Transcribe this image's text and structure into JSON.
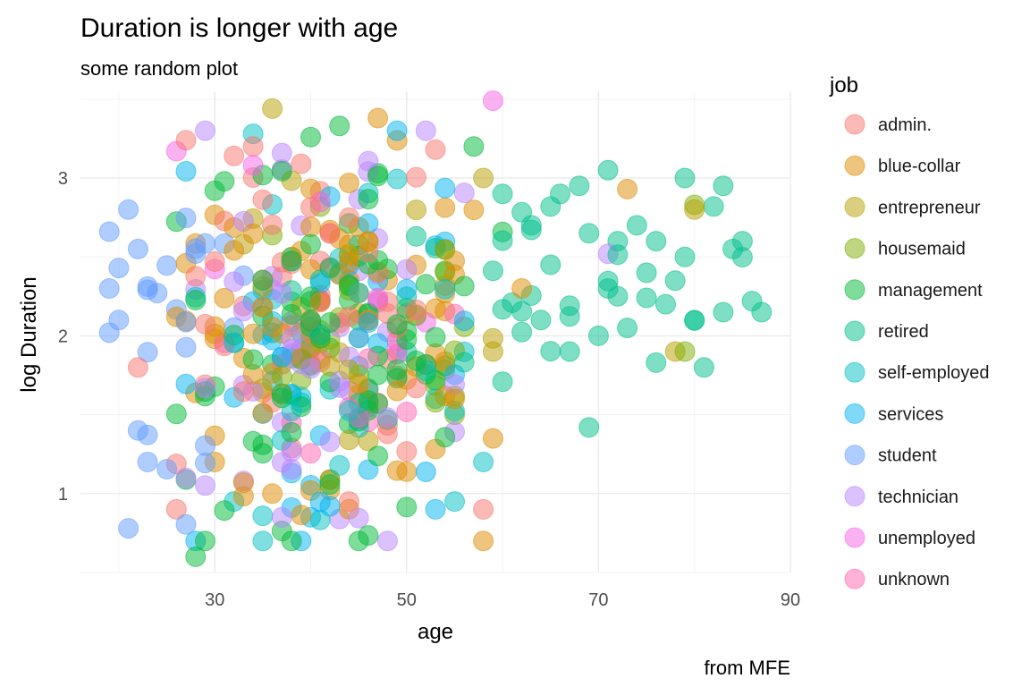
{
  "chart_data": {
    "type": "scatter",
    "title": "Duration is longer with age",
    "subtitle": "some random plot",
    "xlabel": "age",
    "ylabel": "log Duration",
    "caption": "from MFE",
    "xlim": [
      16,
      90
    ],
    "ylim": [
      0.5,
      3.55
    ],
    "x_ticks": [
      30,
      50,
      70,
      90
    ],
    "y_ticks": [
      1,
      2,
      3
    ],
    "grid": true,
    "legend_title": "job",
    "legend_position": "right",
    "point_alpha": 0.5,
    "series": [
      {
        "name": "admin.",
        "color": "#F8766D",
        "age_range": [
          22,
          60
        ],
        "ld_range": [
          0.9,
          3.25
        ],
        "points": [
          [
            27,
            3.24
          ],
          [
            34,
            3.2
          ],
          [
            32,
            3.14
          ],
          [
            53,
            3.18
          ],
          [
            58,
            0.9
          ],
          [
            26,
            0.9
          ],
          [
            22,
            1.8
          ],
          [
            44,
            0.95
          ]
        ]
      },
      {
        "name": "blue-collar",
        "color": "#DE8C00",
        "age_range": [
          23,
          61
        ],
        "ld_range": [
          0.7,
          3.4
        ],
        "points": [
          [
            47,
            3.38
          ],
          [
            58,
            0.7
          ],
          [
            59,
            1.35
          ],
          [
            73,
            2.93
          ],
          [
            55,
            1.6
          ],
          [
            30,
            1.2
          ],
          [
            36,
            1.0
          ],
          [
            62,
            2.3
          ]
        ]
      },
      {
        "name": "entrepreneur",
        "color": "#B79F00",
        "age_range": [
          25,
          60
        ],
        "ld_range": [
          1.0,
          3.1
        ],
        "points": [
          [
            36,
            3.44
          ],
          [
            58,
            3.0
          ],
          [
            80,
            2.8
          ],
          [
            59,
            1.9
          ],
          [
            78,
            1.9
          ]
        ]
      },
      {
        "name": "housemaid",
        "color": "#7CAE00",
        "age_range": [
          27,
          61
        ],
        "ld_range": [
          0.9,
          3.0
        ],
        "points": [
          [
            80,
            2.83
          ],
          [
            79,
            1.9
          ],
          [
            38,
            2.5
          ],
          [
            55,
            1.5
          ]
        ]
      },
      {
        "name": "management",
        "color": "#00BA38",
        "age_range": [
          25,
          61
        ],
        "ld_range": [
          0.6,
          3.35
        ],
        "points": [
          [
            28,
            0.6
          ],
          [
            29,
            0.7
          ],
          [
            38,
            0.7
          ],
          [
            45,
            0.7
          ],
          [
            43,
            3.33
          ],
          [
            40,
            3.26
          ],
          [
            57,
            3.2
          ]
        ]
      },
      {
        "name": "retired",
        "color": "#00C08B",
        "age_range": [
          33,
          87
        ],
        "ld_range": [
          1.4,
          3.05
        ],
        "points": [
          [
            71,
            3.05
          ],
          [
            79,
            3.0
          ],
          [
            83,
            2.95
          ],
          [
            84,
            2.55
          ],
          [
            86,
            2.22
          ],
          [
            87,
            2.15
          ],
          [
            81,
            1.8
          ],
          [
            76,
            1.83
          ],
          [
            69,
            1.42
          ],
          [
            68,
            2.95
          ],
          [
            72,
            2.6
          ],
          [
            75,
            2.4
          ],
          [
            80,
            2.1
          ],
          [
            83,
            2.15
          ],
          [
            70,
            2.0
          ],
          [
            67,
            1.9
          ],
          [
            78,
            2.35
          ],
          [
            82,
            2.82
          ],
          [
            74,
            2.7
          ],
          [
            73,
            2.05
          ],
          [
            77,
            2.2
          ],
          [
            65,
            2.45
          ],
          [
            66,
            2.9
          ],
          [
            64,
            2.1
          ],
          [
            71,
            2.3
          ],
          [
            76,
            2.6
          ],
          [
            79,
            2.5
          ],
          [
            63,
            2.7
          ],
          [
            69,
            2.65
          ],
          [
            72,
            2.25
          ],
          [
            85,
            2.6
          ],
          [
            60,
            2.9
          ]
        ]
      },
      {
        "name": "self-employed",
        "color": "#00BFC4",
        "age_range": [
          24,
          60
        ],
        "ld_range": [
          0.7,
          3.3
        ],
        "points": [
          [
            34,
            3.28
          ],
          [
            35,
            0.7
          ],
          [
            32,
            0.95
          ],
          [
            55,
            0.95
          ],
          [
            58,
            1.2
          ]
        ]
      },
      {
        "name": "services",
        "color": "#00B4F0",
        "age_range": [
          23,
          59
        ],
        "ld_range": [
          0.7,
          3.3
        ],
        "points": [
          [
            49,
            3.3
          ],
          [
            39,
            0.7
          ],
          [
            28,
            0.7
          ],
          [
            53,
            0.9
          ],
          [
            40,
            0.85
          ]
        ]
      },
      {
        "name": "student",
        "color": "#619CFF",
        "age_range": [
          19,
          35
        ],
        "ld_range": [
          0.78,
          3.05
        ],
        "points": [
          [
            21,
            0.78
          ],
          [
            19,
            2.66
          ],
          [
            19,
            2.3
          ],
          [
            20,
            2.43
          ],
          [
            21,
            2.8
          ],
          [
            19,
            2.02
          ],
          [
            22,
            1.4
          ],
          [
            23,
            1.2
          ],
          [
            20,
            2.1
          ],
          [
            22,
            2.55
          ]
        ]
      },
      {
        "name": "technician",
        "color": "#B983FF",
        "age_range": [
          23,
          60
        ],
        "ld_range": [
          0.7,
          3.3
        ],
        "points": [
          [
            29,
            3.3
          ],
          [
            52,
            3.3
          ],
          [
            48,
            0.7
          ],
          [
            37,
            0.85
          ],
          [
            71,
            2.52
          ]
        ]
      },
      {
        "name": "unemployed",
        "color": "#F564E3",
        "age_range": [
          23,
          59
        ],
        "ld_range": [
          1.0,
          3.5
        ],
        "points": [
          [
            59,
            3.49
          ],
          [
            26,
            3.17
          ]
        ]
      },
      {
        "name": "unknown",
        "color": "#FF64B0",
        "age_range": [
          24,
          60
        ],
        "ld_range": [
          1.0,
          3.2
        ],
        "points": []
      }
    ]
  }
}
